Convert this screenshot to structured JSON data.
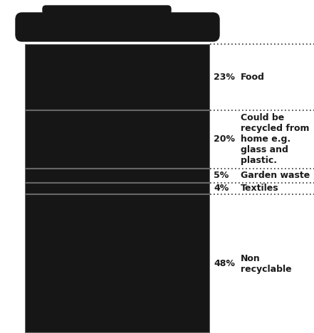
{
  "chart_data": {
    "type": "bar",
    "stacked": true,
    "categories": [
      "Food",
      "Could be recycled from home e.g. glass and plastic.",
      "Garden waste",
      "Textiles",
      "Non recyclable"
    ],
    "values": [
      23,
      20,
      5,
      4,
      48
    ],
    "value_labels": [
      "23%",
      "20%",
      "5%",
      "4%",
      "48%"
    ],
    "colors": [
      "#161616",
      "#161616",
      "#161616",
      "#161616",
      "#161616"
    ],
    "ylim": [
      0,
      100
    ],
    "data_labels": true,
    "tick_labels": false
  }
}
